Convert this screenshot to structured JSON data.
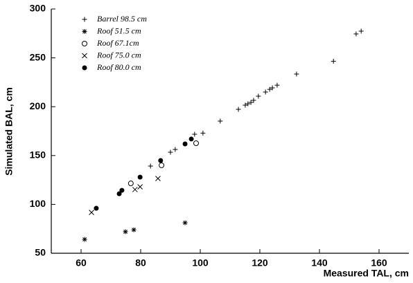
{
  "chart_data": {
    "type": "scatter",
    "x_label": "Measured TAL, cm",
    "y_label": "Simulated BAL, cm",
    "xlim": [
      50,
      170
    ],
    "xticks": [
      60,
      80,
      100,
      120,
      140,
      160
    ],
    "ylim": [
      50,
      300
    ],
    "yticks": [
      50,
      100,
      150,
      200,
      250,
      300
    ],
    "series": [
      {
        "name": "Barrel 98.5 cm",
        "color": "#000000",
        "marker": "plus",
        "x": [
          83.3,
          90.0,
          91.6,
          98.1,
          100.9,
          106.7,
          112.8,
          115.1,
          116.0,
          117.0,
          117.9,
          119.5,
          121.9,
          123.3,
          124.2,
          125.8,
          132.3,
          144.7,
          152.3,
          154.0
        ],
        "values": [
          139.2,
          153.4,
          156.2,
          171.8,
          173.0,
          185.3,
          197.3,
          201.6,
          203.0,
          204.4,
          206.5,
          210.8,
          215.0,
          217.8,
          219.3,
          222.0,
          233.4,
          246.5,
          274.5,
          277.3
        ]
      },
      {
        "name": "Roof 51.5 cm",
        "color": "#000000",
        "marker": "asterisk",
        "x": [
          61.2,
          74.9,
          77.7,
          94.9
        ],
        "values": [
          64.2,
          72.0,
          74.0,
          81.2
        ]
      },
      {
        "name": "Roof 67.1cm",
        "color": "#000000",
        "marker": "circle",
        "x": [
          76.7,
          87.0,
          98.6
        ],
        "values": [
          121.5,
          140.0,
          162.6
        ]
      },
      {
        "name": "Roof 75.0 cm",
        "color": "#000000",
        "marker": "x",
        "x": [
          63.5,
          78.1,
          79.8,
          85.8
        ],
        "values": [
          91.8,
          115.2,
          118.0,
          126.5
        ]
      },
      {
        "name": "Roof 80.0 cm",
        "color": "#000000",
        "marker": "dot",
        "x": [
          65.1,
          72.8,
          73.7,
          79.8,
          86.7,
          94.9,
          97.0
        ],
        "values": [
          96.0,
          110.9,
          114.4,
          127.9,
          144.9,
          161.9,
          166.9
        ]
      }
    ]
  }
}
